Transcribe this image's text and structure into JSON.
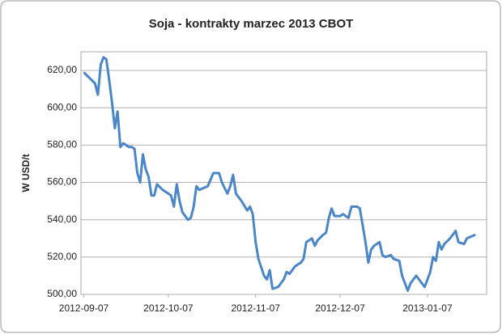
{
  "chart_data": {
    "type": "line",
    "title": "Soja - kontrakty marzec 2013 CBOT",
    "y_label": "W USD/t",
    "x": [
      "2012-09-07",
      "2012-09-09",
      "2012-09-11",
      "2012-09-12",
      "2012-09-13",
      "2012-09-14",
      "2012-09-15",
      "2012-09-16",
      "2012-09-17",
      "2012-09-18",
      "2012-09-19",
      "2012-09-20",
      "2012-09-21",
      "2012-09-23",
      "2012-09-24",
      "2012-09-25",
      "2012-09-26",
      "2012-09-27",
      "2012-09-28",
      "2012-09-29",
      "2012-09-30",
      "2012-10-01",
      "2012-10-02",
      "2012-10-03",
      "2012-10-05",
      "2012-10-07",
      "2012-10-08",
      "2012-10-09",
      "2012-10-10",
      "2012-10-11",
      "2012-10-12",
      "2012-10-14",
      "2012-10-15",
      "2012-10-16",
      "2012-10-17",
      "2012-10-18",
      "2012-10-21",
      "2012-10-23",
      "2012-10-25",
      "2012-10-26",
      "2012-10-28",
      "2012-10-29",
      "2012-10-30",
      "2012-10-31",
      "2012-11-02",
      "2012-11-04",
      "2012-11-05",
      "2012-11-06",
      "2012-11-07",
      "2012-11-08",
      "2012-11-10",
      "2012-11-11",
      "2012-11-12",
      "2012-11-13",
      "2012-11-15",
      "2012-11-17",
      "2012-11-18",
      "2012-11-19",
      "2012-11-21",
      "2012-11-23",
      "2012-11-24",
      "2012-11-25",
      "2012-11-26",
      "2012-11-27",
      "2012-11-28",
      "2012-11-29",
      "2012-12-01",
      "2012-12-02",
      "2012-12-03",
      "2012-12-04",
      "2012-12-05",
      "2012-12-07",
      "2012-12-08",
      "2012-12-09",
      "2012-12-10",
      "2012-12-11",
      "2012-12-13",
      "2012-12-14",
      "2012-12-16",
      "2012-12-17",
      "2012-12-18",
      "2012-12-19",
      "2012-12-21",
      "2012-12-22",
      "2012-12-23",
      "2012-12-25",
      "2012-12-26",
      "2012-12-28",
      "2012-12-29",
      "2012-12-31",
      "2013-01-01",
      "2013-01-03",
      "2013-01-04",
      "2013-01-06",
      "2013-01-08",
      "2013-01-09",
      "2013-01-10",
      "2013-01-11",
      "2013-01-12",
      "2013-01-13",
      "2013-01-15",
      "2013-01-16",
      "2013-01-17",
      "2013-01-18",
      "2013-01-20",
      "2013-01-21",
      "2013-01-24"
    ],
    "series": [
      {
        "name": "Soja",
        "color": "#4a86c8",
        "values": [
          619,
          616,
          613,
          607,
          623,
          627,
          626,
          615,
          603,
          589,
          598,
          579,
          581,
          579,
          579,
          578,
          565,
          560,
          575,
          567,
          563,
          553,
          553,
          559,
          556,
          554,
          553,
          547,
          559,
          550,
          544,
          540,
          541,
          547,
          558,
          556,
          558,
          565,
          565,
          560,
          554,
          558,
          564,
          554,
          550,
          545,
          547,
          543,
          528,
          519,
          510,
          508,
          513,
          503,
          504,
          508,
          512,
          511,
          515,
          517,
          519,
          528,
          529,
          530,
          526,
          529,
          532,
          533,
          541,
          546,
          542,
          542,
          543,
          542,
          541,
          547,
          547,
          546,
          528,
          517,
          524,
          526,
          528,
          521,
          520,
          521,
          519,
          518,
          510,
          502,
          506,
          510,
          508,
          504,
          512,
          520,
          518,
          528,
          524,
          527,
          530,
          532,
          534,
          528,
          527,
          530,
          532
        ]
      }
    ],
    "xlim": [
      "2012-09-06",
      "2013-01-28"
    ],
    "xticks": [
      "2012-09-07",
      "2012-10-07",
      "2012-11-07",
      "2012-12-07",
      "2013-01-07"
    ],
    "ylim": [
      500,
      630
    ],
    "yticks": [
      {
        "value": 500,
        "label": "500,00"
      },
      {
        "value": 520,
        "label": "520,00"
      },
      {
        "value": 540,
        "label": "540,00"
      },
      {
        "value": 560,
        "label": "560,00"
      },
      {
        "value": 580,
        "label": "580,00"
      },
      {
        "value": 600,
        "label": "600,00"
      },
      {
        "value": 620,
        "label": "620,00"
      }
    ],
    "grid": true
  }
}
